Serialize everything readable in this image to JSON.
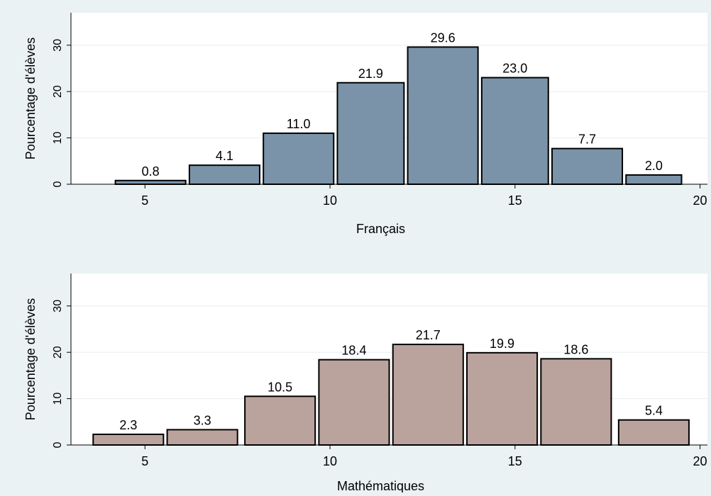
{
  "chart_data": [
    {
      "type": "bar",
      "xlabel": "Français",
      "ylabel": "Pourcentage d'élèves",
      "xlim": [
        3,
        20.2
      ],
      "ylim": [
        0,
        37
      ],
      "xticks": [
        5,
        10,
        15,
        20
      ],
      "yticks": [
        0,
        10,
        20,
        30
      ],
      "bar_color": "#7b93a8",
      "grid": true,
      "bars": [
        {
          "x0": 4.2,
          "x1": 6.1,
          "value": 0.8,
          "label": "0.8"
        },
        {
          "x0": 6.2,
          "x1": 8.1,
          "value": 4.1,
          "label": "4.1"
        },
        {
          "x0": 8.2,
          "x1": 10.1,
          "value": 11.0,
          "label": "11.0"
        },
        {
          "x0": 10.2,
          "x1": 12.0,
          "value": 21.9,
          "label": "21.9"
        },
        {
          "x0": 12.1,
          "x1": 14.0,
          "value": 29.6,
          "label": "29.6"
        },
        {
          "x0": 14.1,
          "x1": 15.9,
          "value": 23.0,
          "label": "23.0"
        },
        {
          "x0": 16.0,
          "x1": 17.9,
          "value": 7.7,
          "label": "7.7"
        },
        {
          "x0": 18.0,
          "x1": 19.5,
          "value": 2.0,
          "label": "2.0"
        }
      ]
    },
    {
      "type": "bar",
      "xlabel": "Mathématiques",
      "ylabel": "Pourcentage d'élèves",
      "xlim": [
        3,
        20.2
      ],
      "ylim": [
        0,
        37
      ],
      "xticks": [
        5,
        10,
        15,
        20
      ],
      "yticks": [
        0,
        10,
        20,
        30
      ],
      "bar_color": "#bba39d",
      "grid": true,
      "bars": [
        {
          "x0": 3.6,
          "x1": 5.5,
          "value": 2.3,
          "label": "2.3"
        },
        {
          "x0": 5.6,
          "x1": 7.5,
          "value": 3.3,
          "label": "3.3"
        },
        {
          "x0": 7.7,
          "x1": 9.6,
          "value": 10.5,
          "label": "10.5"
        },
        {
          "x0": 9.7,
          "x1": 11.6,
          "value": 18.4,
          "label": "18.4"
        },
        {
          "x0": 11.7,
          "x1": 13.6,
          "value": 21.7,
          "label": "21.7"
        },
        {
          "x0": 13.7,
          "x1": 15.6,
          "value": 19.9,
          "label": "19.9"
        },
        {
          "x0": 15.7,
          "x1": 17.6,
          "value": 18.6,
          "label": "18.6"
        },
        {
          "x0": 17.8,
          "x1": 19.7,
          "value": 5.4,
          "label": "5.4"
        }
      ]
    }
  ]
}
